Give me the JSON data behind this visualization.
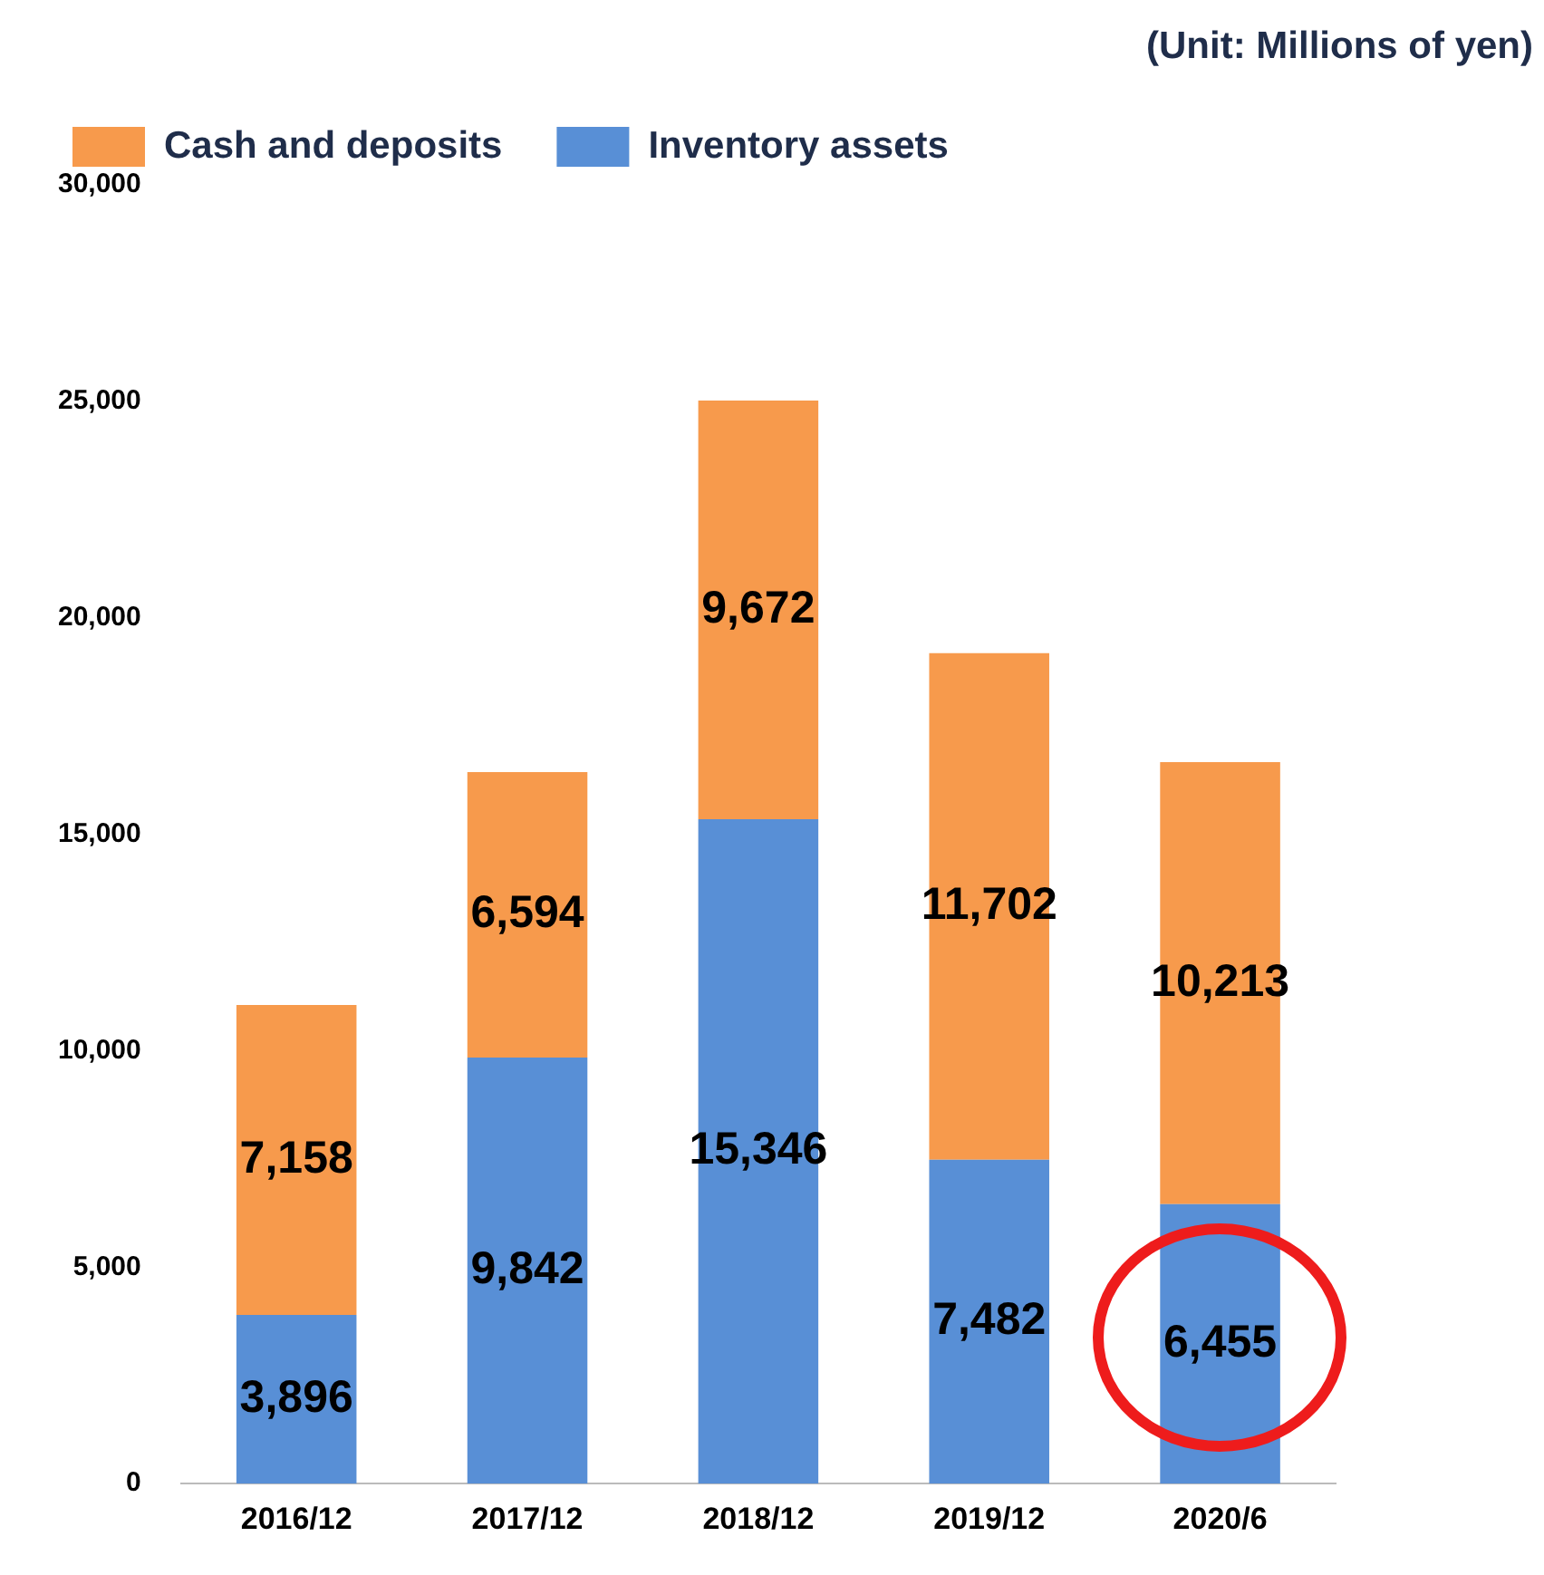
{
  "chart_data": {
    "type": "bar",
    "stacked": true,
    "categories": [
      "2016/12",
      "2017/12",
      "2018/12",
      "2019/12",
      "2020/6"
    ],
    "series": [
      {
        "name": "Inventory assets",
        "color": "#588fd6",
        "values": [
          3896,
          9842,
          15346,
          7482,
          6455
        ],
        "value_labels": [
          "3,896",
          "9,842",
          "15,346",
          "7,482",
          "6,455"
        ]
      },
      {
        "name": "Cash and deposits",
        "color": "#f79a4c",
        "values": [
          7158,
          6594,
          9672,
          11702,
          10213
        ],
        "value_labels": [
          "7,158",
          "6,594",
          "9,672",
          "11,702",
          "10,213"
        ]
      }
    ],
    "ylim": [
      0,
      30000
    ],
    "yticks": [
      {
        "value": 0,
        "label": "0"
      },
      {
        "value": 5000,
        "label": "5,000"
      },
      {
        "value": 10000,
        "label": "10,000"
      },
      {
        "value": 15000,
        "label": "15,000"
      },
      {
        "value": 20000,
        "label": "20,000"
      },
      {
        "value": 25000,
        "label": "25,000"
      },
      {
        "value": 30000,
        "label": "30,000"
      }
    ],
    "grid": false,
    "legend": "top left",
    "data_labels": true,
    "annotations": [
      "(Unit: Millions of yen)"
    ]
  }
}
